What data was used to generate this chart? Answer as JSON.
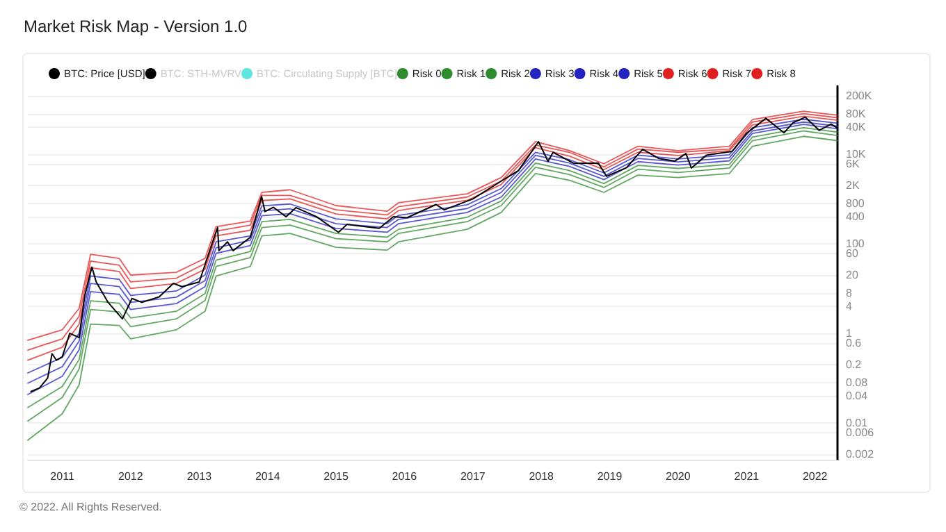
{
  "chart_data": {
    "type": "line",
    "title": "Market Risk Map - Version 1.0",
    "annotations": [
      "© 2022. All Rights Reserved."
    ],
    "log": "y",
    "grid": "y",
    "legend": "top",
    "xlim": [
      "2010-07",
      "2022-05"
    ],
    "xticks": [
      "2011",
      "2012",
      "2013",
      "2014",
      "2015",
      "2016",
      "2017",
      "2018",
      "2019",
      "2020",
      "2021",
      "2022"
    ],
    "ylim": [
      0.0015,
      330000
    ],
    "yticks": [
      0.002,
      0.006,
      0.01,
      0.04,
      0.08,
      0.2,
      0.6,
      1,
      4,
      8,
      20,
      60,
      100,
      400,
      800,
      {
        "value": 2000,
        "label": "2K"
      },
      {
        "value": 6000,
        "label": "6K"
      },
      {
        "value": 10000,
        "label": "10K"
      },
      {
        "value": 40000,
        "label": "40K"
      },
      {
        "value": 80000,
        "label": "80K"
      },
      {
        "value": 200000,
        "label": "200K"
      }
    ],
    "x": [
      "2010-07",
      "2011-01",
      "2011-04",
      "2011-06",
      "2011-11",
      "2012-01",
      "2012-09",
      "2013-02",
      "2013-04",
      "2013-10",
      "2013-12",
      "2014-05",
      "2015-01",
      "2015-10",
      "2015-12",
      "2016-12",
      "2017-06",
      "2017-12",
      "2018-06",
      "2018-12",
      "2019-06",
      "2020-01",
      "2020-10",
      "2021-02",
      "2021-11",
      "2022-05"
    ],
    "series": [
      {
        "name": "BTC: Price [USD]",
        "color": "#000000",
        "x": [
          "2010-07-18",
          "2010-09-01",
          "2010-10-15",
          "2010-11-07",
          "2010-12-01",
          "2011-01-01",
          "2011-02-10",
          "2011-04-01",
          "2011-05-01",
          "2011-06-08",
          "2011-07-01",
          "2011-09-01",
          "2011-11-18",
          "2012-01-08",
          "2012-03-01",
          "2012-06-01",
          "2012-08-16",
          "2012-10-01",
          "2013-01-01",
          "2013-04-09",
          "2013-04-16",
          "2013-06-01",
          "2013-07-01",
          "2013-10-01",
          "2013-11-30",
          "2013-12-18",
          "2014-02-01",
          "2014-04-10",
          "2014-06-01",
          "2014-09-20",
          "2015-01-14",
          "2015-03-01",
          "2015-08-20",
          "2015-11-04",
          "2016-01-15",
          "2016-06-18",
          "2016-08-01",
          "2017-01-01",
          "2017-06-01",
          "2017-09-01",
          "2017-12-17",
          "2018-02-06",
          "2018-03-05",
          "2018-06-25",
          "2018-11-01",
          "2018-12-15",
          "2019-04-01",
          "2019-06-26",
          "2019-09-20",
          "2019-12-15",
          "2020-02-12",
          "2020-03-12",
          "2020-06-01",
          "2020-10-15",
          "2020-12-31",
          "2021-04-14",
          "2021-07-20",
          "2021-09-05",
          "2021-11-10",
          "2022-01-24",
          "2022-03-28",
          "2022-05-01"
        ],
        "values": [
          0.05,
          0.06,
          0.1,
          0.35,
          0.25,
          0.3,
          1.0,
          0.8,
          7,
          30,
          14,
          5,
          2.1,
          6,
          4.9,
          6.5,
          13,
          11,
          14,
          230,
          70,
          110,
          70,
          140,
          1130,
          520,
          650,
          400,
          640,
          400,
          180,
          270,
          220,
          400,
          380,
          750,
          570,
          1000,
          2500,
          4300,
          19000,
          6900,
          11000,
          6200,
          6300,
          3200,
          5000,
          12900,
          8000,
          7000,
          10300,
          4900,
          9500,
          11500,
          29000,
          63000,
          30000,
          50000,
          67000,
          34000,
          47000,
          38000
        ]
      },
      {
        "name": "BTC: STH-MVRV",
        "color": "#000000",
        "values": [
          null,
          null,
          null,
          null,
          null,
          null,
          null,
          null,
          null,
          null,
          null,
          null,
          null,
          null,
          null,
          null,
          null,
          null,
          null,
          null,
          null,
          null,
          null,
          null,
          null,
          null
        ]
      },
      {
        "name": "BTC: Circulating Supply [BTC]",
        "color": "#5ee6de",
        "values": [
          null,
          null,
          null,
          null,
          null,
          null,
          null,
          null,
          null,
          null,
          null,
          null,
          null,
          null,
          null,
          null,
          null,
          null,
          null,
          null,
          null,
          null,
          null,
          null,
          null,
          null
        ]
      },
      {
        "name": "Risk 0",
        "color": "#2e8b2e",
        "values": [
          0.0041,
          0.016,
          0.071,
          1.6,
          1.5,
          0.75,
          1.2,
          3.1,
          19,
          31,
          150,
          170,
          83,
          72,
          110,
          210,
          500,
          3700,
          2600,
          1400,
          3400,
          3000,
          3700,
          15000,
          25000,
          20000
        ]
      },
      {
        "name": "Risk 1",
        "color": "#2e8b2e",
        "values": [
          0.011,
          0.037,
          0.16,
          3.4,
          3.0,
          1.4,
          2.1,
          5.4,
          31,
          49,
          230,
          260,
          130,
          110,
          170,
          310,
          710,
          5100,
          3500,
          1800,
          4600,
          3900,
          4900,
          20000,
          33000,
          26000
        ]
      },
      {
        "name": "Risk 2",
        "color": "#2e8b2e",
        "values": [
          0.022,
          0.065,
          0.26,
          5.3,
          4.7,
          2.2,
          3.1,
          7.7,
          43,
          67,
          310,
          350,
          170,
          140,
          210,
          390,
          900,
          6300,
          4300,
          2200,
          5600,
          4800,
          5900,
          24000,
          39000,
          31000
        ]
      },
      {
        "name": "Risk 3",
        "color": "#2323c0",
        "values": [
          0.043,
          0.11,
          0.43,
          8.5,
          7.4,
          3.4,
          4.6,
          11,
          61,
          91,
          420,
          470,
          220,
          180,
          280,
          500,
          1100,
          7800,
          5300,
          2700,
          6800,
          5700,
          7100,
          29000,
          46000,
          37000
        ]
      },
      {
        "name": "Risk 4",
        "color": "#2323c0",
        "values": [
          0.077,
          0.18,
          0.67,
          13,
          11,
          4.9,
          6.4,
          15,
          81,
          120,
          540,
          600,
          280,
          230,
          350,
          610,
          1400,
          9400,
          6300,
          3200,
          8000,
          6700,
          8300,
          33000,
          52000,
          42000
        ]
      },
      {
        "name": "Risk 5",
        "color": "#2323c0",
        "values": [
          0.13,
          0.29,
          1.0,
          19,
          16,
          7.0,
          8.8,
          20,
          110,
          150,
          700,
          770,
          360,
          280,
          430,
          740,
          1700,
          11000,
          7500,
          3800,
          9500,
          7800,
          9700,
          39000,
          60000,
          49000
        ]
      },
      {
        "name": "Risk 6",
        "color": "#e02020",
        "values": [
          0.25,
          0.49,
          1.6,
          29,
          24,
          10,
          13,
          27,
          150,
          200,
          920,
          1000,
          460,
          360,
          550,
          930,
          2100,
          14000,
          9000,
          4500,
          11000,
          9300,
          12000,
          45000,
          70000,
          57000
        ]
      },
      {
        "name": "Risk 7",
        "color": "#e02020",
        "values": [
          0.42,
          0.75,
          2.4,
          41,
          33,
          14,
          17,
          36,
          190,
          260,
          1200,
          1200,
          570,
          440,
          670,
          1100,
          2500,
          16000,
          11000,
          5200,
          13000,
          11000,
          13000,
          52000,
          80000,
          65000
        ]
      },
      {
        "name": "Risk 8",
        "color": "#e02020",
        "values": [
          0.7,
          1.2,
          3.6,
          58,
          47,
          20,
          23,
          47,
          240,
          320,
          1400,
          1600,
          710,
          530,
          820,
          1300,
          3000,
          19000,
          12000,
          6100,
          15000,
          12000,
          15000,
          59000,
          91000,
          74000
        ]
      }
    ]
  }
}
